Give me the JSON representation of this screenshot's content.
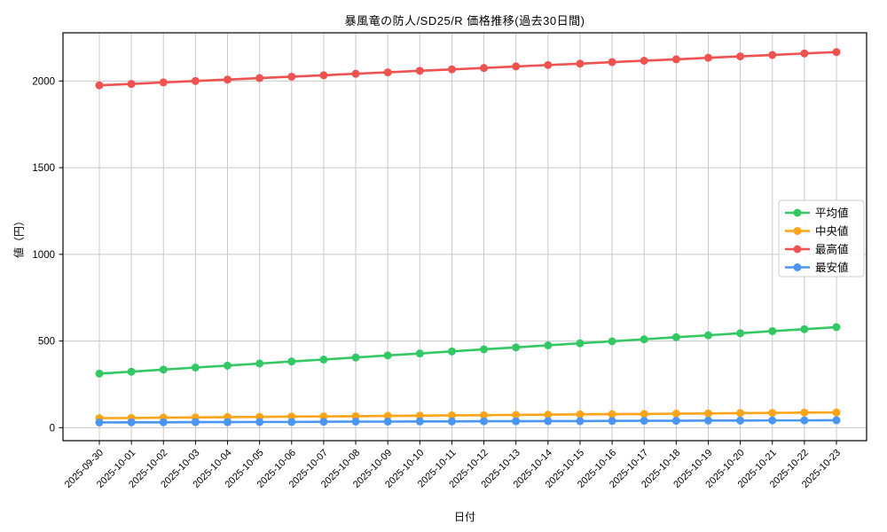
{
  "figure": {
    "title": "暴風竜の防人/SD25/R 価格推移(過去30日間)",
    "xlabel": "日付",
    "ylabel": "値（円）"
  },
  "chart_data": {
    "type": "line",
    "title": "暴風竜の防人/SD25/R 価格推移(過去30日間)",
    "xlabel": "日付",
    "ylabel": "値（円）",
    "categories": [
      "2025-09-30",
      "2025-10-01",
      "2025-10-02",
      "2025-10-03",
      "2025-10-04",
      "2025-10-05",
      "2025-10-06",
      "2025-10-07",
      "2025-10-08",
      "2025-10-09",
      "2025-10-10",
      "2025-10-11",
      "2025-10-12",
      "2025-10-13",
      "2025-10-14",
      "2025-10-15",
      "2025-10-16",
      "2025-10-17",
      "2025-10-18",
      "2025-10-19",
      "2025-10-20",
      "2025-10-21",
      "2025-10-22",
      "2025-10-23"
    ],
    "series": [
      {
        "name": "平均値",
        "color": "#34c864",
        "marker": "circle",
        "values": [
          312,
          323,
          335,
          347,
          358,
          370,
          382,
          393,
          405,
          417,
          428,
          440,
          452,
          463,
          475,
          487,
          498,
          510,
          522,
          533,
          545,
          557,
          568,
          580
        ]
      },
      {
        "name": "中央値",
        "color": "#ffa418",
        "marker": "circle",
        "values": [
          55,
          56,
          58,
          59,
          61,
          62,
          64,
          65,
          66,
          68,
          69,
          71,
          72,
          74,
          75,
          77,
          78,
          79,
          81,
          82,
          84,
          85,
          87,
          88
        ]
      },
      {
        "name": "最高値",
        "color": "#f05250",
        "marker": "circle",
        "values": [
          1975,
          1983,
          1992,
          2000,
          2008,
          2017,
          2025,
          2033,
          2042,
          2050,
          2059,
          2067,
          2075,
          2084,
          2092,
          2100,
          2109,
          2117,
          2125,
          2134,
          2142,
          2150,
          2159,
          2167
        ]
      },
      {
        "name": "最安値",
        "color": "#4b96f3",
        "marker": "circle",
        "values": [
          30,
          31,
          31,
          32,
          32,
          33,
          33,
          34,
          35,
          35,
          36,
          36,
          37,
          37,
          38,
          38,
          39,
          40,
          40,
          41,
          41,
          42,
          42,
          43
        ]
      }
    ],
    "yticks": [
      0,
      500,
      1000,
      1500,
      2000
    ],
    "ylim": [
      -75,
      2278
    ],
    "grid": true,
    "legend_position": "center-right",
    "colors": {
      "grid": "#c8c8c8",
      "spine": "#000000",
      "legend_border": "#cccccc",
      "background": "#ffffff"
    }
  }
}
